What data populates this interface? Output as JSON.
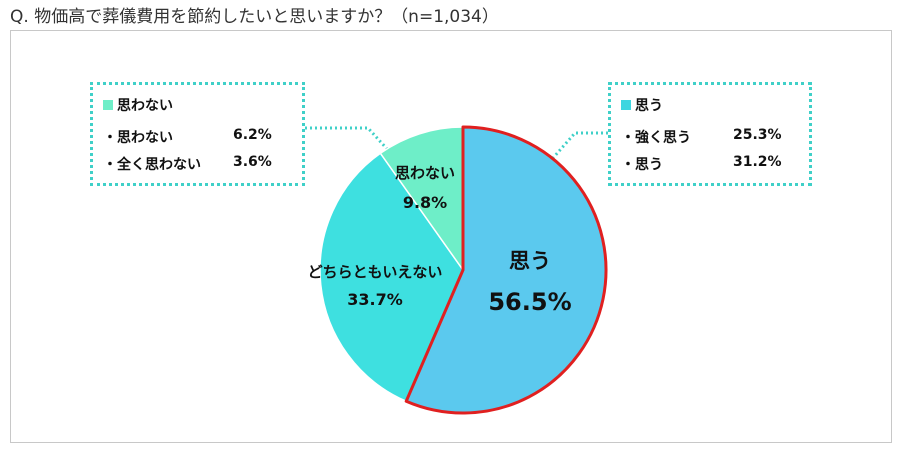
{
  "question": "Q.  物価高で葬儀費用を節約したいと思いますか？（n=1,034）",
  "chart_data": {
    "type": "pie",
    "categories": [
      "思う",
      "どちらともいえない",
      "思わない"
    ],
    "values": [
      56.5,
      33.7,
      9.8
    ],
    "labels": [
      "56.5%",
      "33.7%",
      "9.8%"
    ],
    "colors": [
      "#5bc9ee",
      "#3ee0e0",
      "#6eeec8"
    ],
    "highlight_color": "#e02020"
  },
  "left_box": {
    "title": "思わない",
    "title_color": "#6eeec8",
    "rows": [
      {
        "label": "・思わない",
        "value": "6.2%"
      },
      {
        "label": "・全く思わない",
        "value": "3.6%"
      }
    ]
  },
  "right_box": {
    "title": "思う",
    "title_color": "#3ed6e0",
    "rows": [
      {
        "label": "・強く思う",
        "value": "25.3%"
      },
      {
        "label": "・思う",
        "value": "31.2%"
      }
    ]
  },
  "connector_color": "#3fd0c8"
}
